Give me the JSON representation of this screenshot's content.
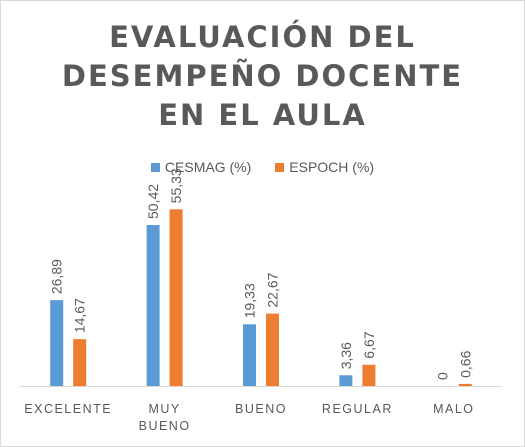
{
  "chart_data": {
    "type": "bar",
    "title_lines": [
      "EVALUACIÓN DEL",
      "DESEMPEÑO DOCENTE",
      "EN EL AULA"
    ],
    "categories": [
      [
        "EXCELENTE"
      ],
      [
        "MUY",
        "BUENO"
      ],
      [
        "BUENO"
      ],
      [
        "REGULAR"
      ],
      [
        "MALO"
      ]
    ],
    "series": [
      {
        "name": "CESMAG (%)",
        "color": "#5b9bd5",
        "values": [
          26.89,
          50.42,
          19.33,
          3.36,
          0
        ],
        "labels": [
          "26,89",
          "50,42",
          "19,33",
          "3,36",
          "0"
        ]
      },
      {
        "name": "ESPOCH (%)",
        "color": "#ed7d31",
        "values": [
          14.67,
          55.33,
          22.67,
          6.67,
          0.66
        ],
        "labels": [
          "14,67",
          "55,33",
          "22,67",
          "6,67",
          "0,66"
        ]
      }
    ],
    "legend_position": "top",
    "grid": false,
    "ylim": [
      0,
      60
    ]
  }
}
